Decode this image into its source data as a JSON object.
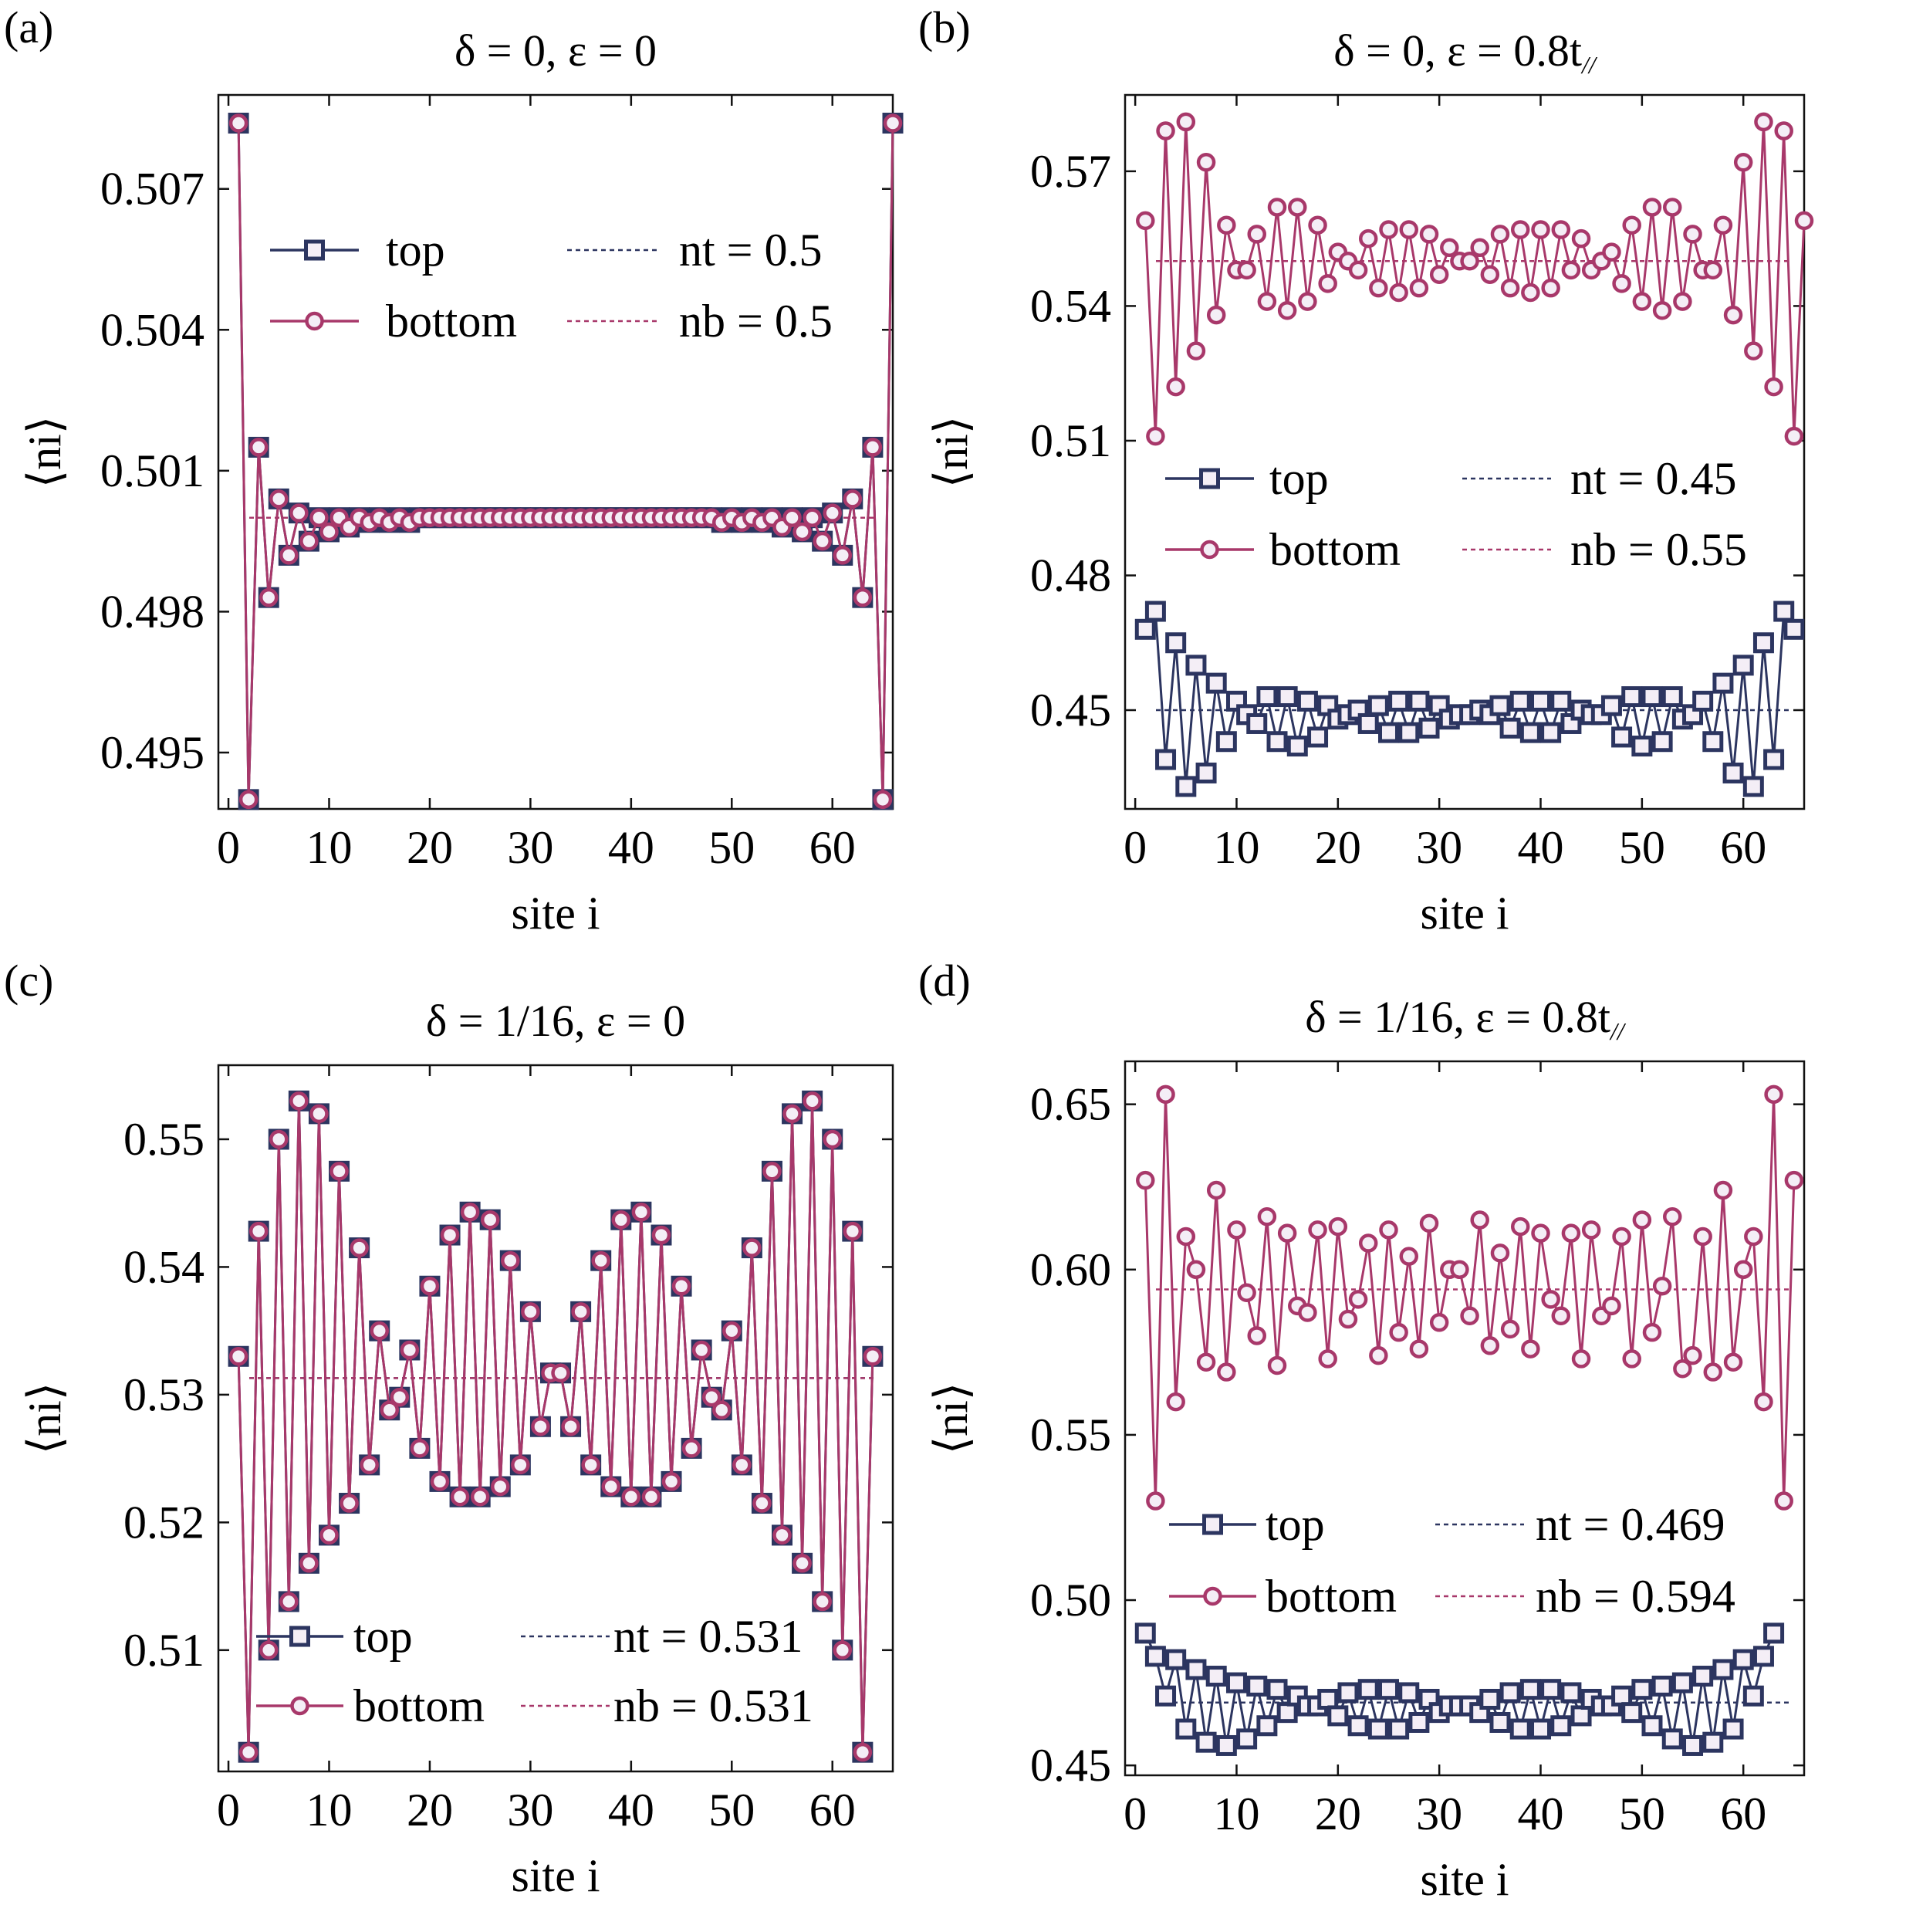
{
  "colors": {
    "top": "#2c3560",
    "bottom": "#a8386a",
    "marker_fill": "#f4eef6"
  },
  "chart_data": [
    {
      "type": "line",
      "panel": "(a)",
      "title": {
        "prefix": "δ = 0, ε = 0",
        "suffix": ""
      },
      "xlabel": "site i",
      "ylabel": "⟨ni⟩",
      "xlim": [
        -1,
        66
      ],
      "ylim": [
        0.4938,
        0.509
      ],
      "xticks": [
        0,
        10,
        20,
        30,
        40,
        50,
        60
      ],
      "yticks": [
        0.495,
        0.498,
        0.501,
        0.504,
        0.507
      ],
      "ytick_labels": [
        "0.495",
        "0.498",
        "0.501",
        "0.504",
        "0.507"
      ],
      "legend": {
        "position": "upper",
        "top": "top",
        "bottom": "bottom",
        "nt": "nt = 0.5",
        "nb": "nb = 0.5"
      },
      "reference": {
        "top": 0.5,
        "bottom": 0.5
      },
      "series": [
        {
          "name": "top",
          "values": [
            0.5084,
            0.494,
            0.5015,
            0.4983,
            0.5004,
            0.4992,
            0.5001,
            0.4995,
            0.5,
            0.4997,
            0.5,
            0.4998,
            0.5,
            0.4999,
            0.5,
            0.4999,
            0.5,
            0.4999,
            0.5,
            0.5,
            0.5,
            0.5,
            0.5,
            0.5,
            0.5,
            0.5,
            0.5,
            0.5,
            0.5,
            0.5,
            0.5,
            0.5,
            0.5,
            0.5,
            0.5,
            0.5,
            0.5,
            0.5,
            0.5,
            0.5,
            0.5,
            0.5,
            0.5,
            0.5,
            0.5,
            0.5,
            0.5,
            0.5,
            0.4999,
            0.5,
            0.4999,
            0.5,
            0.4999,
            0.5,
            0.4998,
            0.5,
            0.4997,
            0.5,
            0.4995,
            0.5001,
            0.4992,
            0.5004,
            0.4983,
            0.5015,
            0.494,
            0.5084
          ]
        },
        {
          "name": "bottom",
          "values": [
            0.5084,
            0.494,
            0.5015,
            0.4983,
            0.5004,
            0.4992,
            0.5001,
            0.4995,
            0.5,
            0.4997,
            0.5,
            0.4998,
            0.5,
            0.4999,
            0.5,
            0.4999,
            0.5,
            0.4999,
            0.5,
            0.5,
            0.5,
            0.5,
            0.5,
            0.5,
            0.5,
            0.5,
            0.5,
            0.5,
            0.5,
            0.5,
            0.5,
            0.5,
            0.5,
            0.5,
            0.5,
            0.5,
            0.5,
            0.5,
            0.5,
            0.5,
            0.5,
            0.5,
            0.5,
            0.5,
            0.5,
            0.5,
            0.5,
            0.5,
            0.4999,
            0.5,
            0.4999,
            0.5,
            0.4999,
            0.5,
            0.4998,
            0.5,
            0.4997,
            0.5,
            0.4995,
            0.5001,
            0.4992,
            0.5004,
            0.4983,
            0.5015,
            0.494,
            0.5084
          ]
        }
      ]
    },
    {
      "type": "line",
      "panel": "(b)",
      "title": {
        "prefix": "δ = 0, ε = 0.8t",
        "suffix": "//"
      },
      "xlabel": "site i",
      "ylabel": "⟨ni⟩",
      "xlim": [
        -1,
        66
      ],
      "ylim": [
        0.428,
        0.587
      ],
      "xticks": [
        0,
        10,
        20,
        30,
        40,
        50,
        60
      ],
      "yticks": [
        0.45,
        0.48,
        0.51,
        0.54,
        0.57
      ],
      "ytick_labels": [
        "0.45",
        "0.48",
        "0.51",
        "0.54",
        "0.57"
      ],
      "legend": {
        "position": "middle",
        "top": "top",
        "bottom": "bottom",
        "nt": "nt = 0.45",
        "nb": "nb = 0.55"
      },
      "reference": {
        "top": 0.45,
        "bottom": 0.55
      },
      "series": [
        {
          "name": "top",
          "values": [
            0.468,
            0.472,
            0.439,
            0.465,
            0.433,
            0.46,
            0.436,
            0.456,
            0.443,
            0.452,
            0.449,
            0.447,
            0.453,
            0.443,
            0.453,
            0.442,
            0.452,
            0.444,
            0.451,
            0.448,
            0.449,
            0.45,
            0.447,
            0.451,
            0.445,
            0.452,
            0.445,
            0.452,
            0.446,
            0.451,
            0.448,
            0.449,
            0.449,
            0.45,
            0.449,
            0.451,
            0.446,
            0.452,
            0.445,
            0.452,
            0.445,
            0.452,
            0.447,
            0.45,
            0.449,
            0.449,
            0.451,
            0.444,
            0.453,
            0.442,
            0.453,
            0.443,
            0.453,
            0.448,
            0.449,
            0.452,
            0.443,
            0.456,
            0.436,
            0.46,
            0.433,
            0.465,
            0.439,
            0.472,
            0.468
          ]
        },
        {
          "name": "bottom",
          "values": [
            0.559,
            0.511,
            0.579,
            0.522,
            0.581,
            0.53,
            0.572,
            0.538,
            0.558,
            0.548,
            0.548,
            0.556,
            0.541,
            0.562,
            0.539,
            0.562,
            0.541,
            0.558,
            0.545,
            0.552,
            0.55,
            0.548,
            0.555,
            0.544,
            0.557,
            0.543,
            0.557,
            0.544,
            0.556,
            0.547,
            0.553,
            0.55,
            0.55,
            0.553,
            0.547,
            0.556,
            0.544,
            0.557,
            0.543,
            0.557,
            0.544,
            0.557,
            0.548,
            0.555,
            0.548,
            0.55,
            0.552,
            0.545,
            0.558,
            0.541,
            0.562,
            0.539,
            0.562,
            0.541,
            0.556,
            0.548,
            0.548,
            0.558,
            0.538,
            0.572,
            0.53,
            0.581,
            0.522,
            0.579,
            0.511,
            0.559
          ]
        }
      ]
    },
    {
      "type": "line",
      "panel": "(c)",
      "title": {
        "prefix": "δ = 1/16, ε = 0",
        "suffix": ""
      },
      "xlabel": "site i",
      "ylabel": "⟨ni⟩",
      "xlim": [
        -1,
        66
      ],
      "ylim": [
        0.5005,
        0.5558
      ],
      "xticks": [
        0,
        10,
        20,
        30,
        40,
        50,
        60
      ],
      "yticks": [
        0.51,
        0.52,
        0.53,
        0.54,
        0.55
      ],
      "ytick_labels": [
        "0.51",
        "0.52",
        "0.53",
        "0.54",
        "0.55"
      ],
      "legend": {
        "position": "lower",
        "top": "top",
        "bottom": "bottom",
        "nt": "nt = 0.531",
        "nb": "nb = 0.531"
      },
      "reference": {
        "top": 0.5313,
        "bottom": 0.5313
      },
      "series": [
        {
          "name": "top",
          "values": [
            0.533,
            0.502,
            0.5428,
            0.51,
            0.55,
            0.5138,
            0.553,
            0.5168,
            0.552,
            0.519,
            0.5475,
            0.5215,
            0.5415,
            0.5245,
            0.535,
            0.5288,
            0.5298,
            0.5335,
            0.5258,
            0.5385,
            0.5232,
            0.5425,
            0.522,
            0.5443,
            0.522,
            0.5437,
            0.5228,
            0.5405,
            0.5245,
            0.5365,
            0.5275,
            0.5317,
            0.5317,
            0.5275,
            0.5365,
            0.5245,
            0.5405,
            0.5228,
            0.5437,
            0.522,
            0.5443,
            0.522,
            0.5425,
            0.5232,
            0.5385,
            0.5258,
            0.5335,
            0.5298,
            0.5288,
            0.535,
            0.5245,
            0.5415,
            0.5215,
            0.5475,
            0.519,
            0.552,
            0.5168,
            0.553,
            0.5138,
            0.55,
            0.51,
            0.5428,
            0.502,
            0.533
          ]
        },
        {
          "name": "bottom",
          "values": [
            0.533,
            0.502,
            0.5428,
            0.51,
            0.55,
            0.5138,
            0.553,
            0.5168,
            0.552,
            0.519,
            0.5475,
            0.5215,
            0.5415,
            0.5245,
            0.535,
            0.5288,
            0.5298,
            0.5335,
            0.5258,
            0.5385,
            0.5232,
            0.5425,
            0.522,
            0.5443,
            0.522,
            0.5437,
            0.5228,
            0.5405,
            0.5245,
            0.5365,
            0.5275,
            0.5317,
            0.5317,
            0.5275,
            0.5365,
            0.5245,
            0.5405,
            0.5228,
            0.5437,
            0.522,
            0.5443,
            0.522,
            0.5425,
            0.5232,
            0.5385,
            0.5258,
            0.5335,
            0.5298,
            0.5288,
            0.535,
            0.5245,
            0.5415,
            0.5215,
            0.5475,
            0.519,
            0.552,
            0.5168,
            0.553,
            0.5138,
            0.55,
            0.51,
            0.5428,
            0.502,
            0.533
          ]
        }
      ]
    },
    {
      "type": "line",
      "panel": "(d)",
      "title": {
        "prefix": "δ = 1/16, ε = 0.8t",
        "suffix": "//"
      },
      "xlabel": "site i",
      "ylabel": "⟨ni⟩",
      "xlim": [
        -1,
        66
      ],
      "ylim": [
        0.447,
        0.663
      ],
      "xticks": [
        0,
        10,
        20,
        30,
        40,
        50,
        60
      ],
      "yticks": [
        0.45,
        0.5,
        0.55,
        0.6,
        0.65
      ],
      "ytick_labels": [
        "0.45",
        "0.50",
        "0.55",
        "0.60",
        "0.65"
      ],
      "legend": {
        "position": "lower",
        "top": "top",
        "bottom": "bottom",
        "nt": "nt = 0.469",
        "nb": "nb = 0.594"
      },
      "reference": {
        "top": 0.469,
        "bottom": 0.594
      },
      "series": [
        {
          "name": "top",
          "values": [
            0.49,
            0.483,
            0.471,
            0.482,
            0.461,
            0.479,
            0.457,
            0.477,
            0.456,
            0.475,
            0.458,
            0.474,
            0.462,
            0.473,
            0.466,
            0.471,
            0.468,
            0.468,
            0.47,
            0.465,
            0.472,
            0.462,
            0.473,
            0.461,
            0.473,
            0.461,
            0.472,
            0.463,
            0.47,
            0.466,
            0.468,
            0.468,
            0.468,
            0.466,
            0.47,
            0.463,
            0.472,
            0.461,
            0.473,
            0.461,
            0.473,
            0.462,
            0.472,
            0.465,
            0.47,
            0.468,
            0.468,
            0.471,
            0.466,
            0.473,
            0.462,
            0.474,
            0.458,
            0.475,
            0.456,
            0.477,
            0.457,
            0.479,
            0.461,
            0.482,
            0.471,
            0.483,
            0.49
          ]
        },
        {
          "name": "bottom",
          "values": [
            0.627,
            0.53,
            0.653,
            0.56,
            0.61,
            0.6,
            0.572,
            0.624,
            0.569,
            0.612,
            0.593,
            0.58,
            0.616,
            0.571,
            0.611,
            0.589,
            0.587,
            0.612,
            0.573,
            0.613,
            0.585,
            0.591,
            0.608,
            0.574,
            0.612,
            0.581,
            0.604,
            0.576,
            0.614,
            0.584,
            0.6,
            0.6,
            0.586,
            0.615,
            0.577,
            0.605,
            0.582,
            0.613,
            0.576,
            0.611,
            0.591,
            0.586,
            0.611,
            0.573,
            0.612,
            0.586,
            0.589,
            0.61,
            0.573,
            0.615,
            0.581,
            0.595,
            0.616,
            0.57,
            0.574,
            0.61,
            0.569,
            0.624,
            0.572,
            0.6,
            0.61,
            0.56,
            0.653,
            0.53,
            0.627
          ]
        }
      ]
    }
  ]
}
